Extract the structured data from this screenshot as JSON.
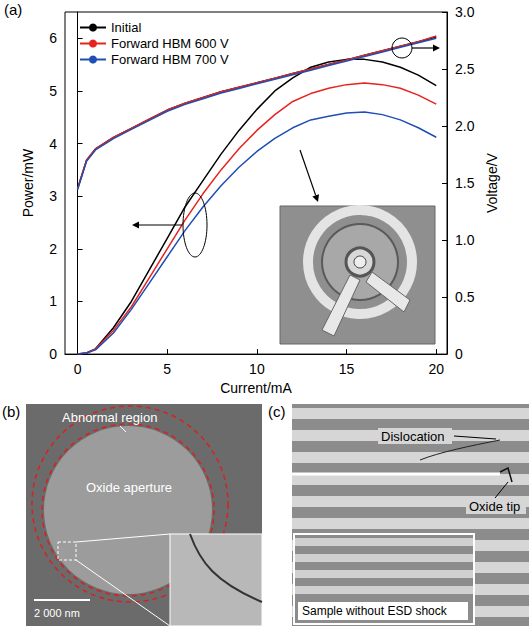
{
  "chart_data": {
    "type": "line",
    "panel_label": "(a)",
    "x_label": "Current/mA",
    "y_label": "Power/mW",
    "y2_label": "Voltage/V",
    "legend": "top-left",
    "grid": false,
    "x": [
      0,
      0.5,
      1,
      2,
      3,
      4,
      5,
      6,
      7,
      8,
      9,
      10,
      11,
      12,
      13,
      14,
      15,
      16,
      17,
      18,
      19,
      20
    ],
    "xlim": [
      -0.7,
      20.6
    ],
    "xticks": [
      0,
      5,
      10,
      15,
      20
    ],
    "ylim": [
      0,
      6.5
    ],
    "yticks": [
      0,
      1,
      2,
      3,
      4,
      5,
      6
    ],
    "y2lim": [
      0,
      3
    ],
    "y2ticks": [
      0,
      0.5,
      {
        "value": 1,
        "label": "1.0"
      },
      1.5,
      {
        "value": 2,
        "label": "2.0"
      },
      2.5,
      {
        "value": 3,
        "label": "3.0"
      }
    ],
    "series": [
      {
        "name": "Initial",
        "color": "#000000",
        "axis": "y",
        "values": [
          0,
          0.02,
          0.1,
          0.5,
          1.0,
          1.6,
          2.2,
          2.8,
          3.3,
          3.8,
          4.25,
          4.65,
          5.0,
          5.25,
          5.45,
          5.55,
          5.6,
          5.6,
          5.55,
          5.45,
          5.3,
          5.1
        ]
      },
      {
        "name": "Forward HBM 600 V",
        "color": "#e8231f",
        "axis": "y",
        "values": [
          0,
          0.02,
          0.1,
          0.45,
          0.9,
          1.45,
          2.0,
          2.55,
          3.05,
          3.5,
          3.9,
          4.25,
          4.55,
          4.8,
          4.95,
          5.05,
          5.12,
          5.15,
          5.12,
          5.05,
          4.92,
          4.75
        ]
      },
      {
        "name": "Forward HBM 700 V",
        "color": "#1f4fb4",
        "axis": "y",
        "values": [
          0,
          0.02,
          0.08,
          0.4,
          0.85,
          1.35,
          1.85,
          2.35,
          2.8,
          3.2,
          3.55,
          3.85,
          4.1,
          4.3,
          4.45,
          4.52,
          4.58,
          4.6,
          4.55,
          4.45,
          4.3,
          4.12
        ]
      },
      {
        "name": "Initial",
        "color": "#000000",
        "axis": "y2",
        "values": [
          1.45,
          1.7,
          1.8,
          1.9,
          1.98,
          2.06,
          2.14,
          2.2,
          2.25,
          2.3,
          2.34,
          2.38,
          2.42,
          2.46,
          2.5,
          2.54,
          2.58,
          2.62,
          2.66,
          2.7,
          2.74,
          2.78
        ]
      },
      {
        "name": "Forward HBM 600 V",
        "color": "#e8231f",
        "axis": "y2",
        "values": [
          1.45,
          1.7,
          1.8,
          1.9,
          1.98,
          2.06,
          2.14,
          2.2,
          2.25,
          2.3,
          2.34,
          2.38,
          2.42,
          2.46,
          2.5,
          2.54,
          2.58,
          2.62,
          2.66,
          2.7,
          2.74,
          2.79
        ]
      },
      {
        "name": "Forward HBM 700 V",
        "color": "#1f4fb4",
        "axis": "y2",
        "values": [
          1.44,
          1.69,
          1.79,
          1.89,
          1.97,
          2.05,
          2.13,
          2.19,
          2.24,
          2.29,
          2.33,
          2.37,
          2.41,
          2.45,
          2.49,
          2.53,
          2.57,
          2.61,
          2.65,
          2.69,
          2.73,
          2.77
        ]
      }
    ]
  },
  "panels": [
    {
      "label": "(b)",
      "annotations": [
        "Abnormal region",
        "Oxide aperture"
      ],
      "scale_bar": "2 000 nm"
    },
    {
      "label": "(c)",
      "annotations": [
        "Dislocation",
        "Oxide tip"
      ],
      "inset_label": "Sample without ESD shock"
    }
  ]
}
